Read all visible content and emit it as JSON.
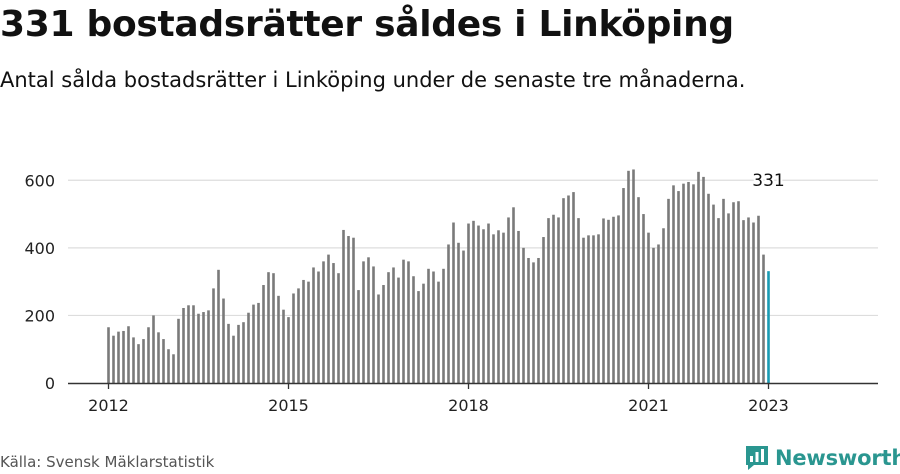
{
  "header": {
    "title": "331 bostadsrätter såldes i Linköping",
    "subtitle": "Antal sålda bostadsrätter i Linköping under de senaste tre månaderna."
  },
  "footer": {
    "source": "Källa: Svensk Mäklarstatistik",
    "brand": "Newsworthy"
  },
  "colors": {
    "bar": "#7a7a7a",
    "highlight": "#1a9bb3",
    "grid": "#dddddd",
    "brand": "#2a9690"
  },
  "icons": {
    "brand_logo": "newsworthy-logo-icon"
  },
  "chart_data": {
    "type": "bar",
    "title": "331 bostadsrätter såldes i Linköping",
    "xlabel": "",
    "ylabel": "",
    "ylim": [
      0,
      660
    ],
    "yticks": [
      0,
      200,
      400,
      600
    ],
    "xticks": [
      {
        "label": "2012",
        "index": 0
      },
      {
        "label": "2015",
        "index": 36
      },
      {
        "label": "2018",
        "index": 72
      },
      {
        "label": "2021",
        "index": 108
      },
      {
        "label": "2023",
        "index": 132
      }
    ],
    "grid": true,
    "frequency": "monthly",
    "first_period": "2012-01",
    "last_period": "2023-01",
    "highlight_index": 132,
    "highlight_label": "331",
    "values": [
      165,
      140,
      152,
      154,
      168,
      135,
      115,
      130,
      165,
      200,
      150,
      130,
      100,
      85,
      190,
      222,
      230,
      230,
      205,
      210,
      215,
      280,
      335,
      250,
      175,
      140,
      172,
      180,
      208,
      232,
      237,
      290,
      328,
      325,
      258,
      217,
      195,
      265,
      280,
      305,
      300,
      342,
      330,
      360,
      380,
      355,
      325,
      453,
      435,
      430,
      275,
      360,
      372,
      345,
      262,
      290,
      328,
      342,
      312,
      365,
      360,
      316,
      272,
      294,
      338,
      330,
      300,
      338,
      410,
      475,
      415,
      392,
      472,
      480,
      466,
      455,
      472,
      440,
      452,
      445,
      490,
      520,
      450,
      400,
      370,
      357,
      370,
      432,
      488,
      498,
      490,
      547,
      555,
      565,
      488,
      430,
      437,
      437,
      440,
      487,
      483,
      492,
      496,
      577,
      628,
      632,
      550,
      500,
      445,
      400,
      410,
      458,
      545,
      585,
      568,
      590,
      595,
      588,
      625,
      610,
      560,
      528,
      488,
      545,
      502,
      535,
      538,
      482,
      490,
      475,
      495,
      380,
      331
    ]
  }
}
